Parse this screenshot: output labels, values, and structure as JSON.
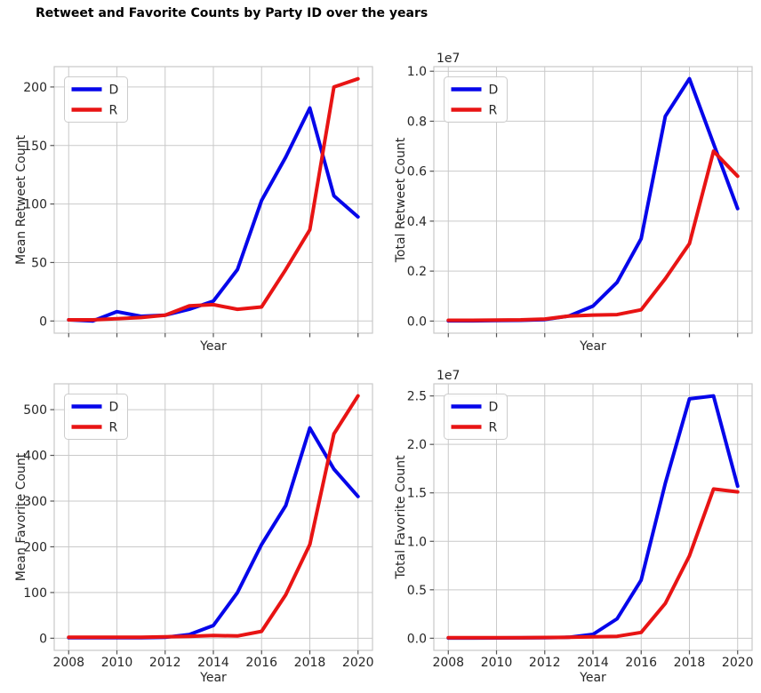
{
  "title": "Retweet and Favorite Counts by Party ID over the years",
  "legend_labels": [
    "D",
    "R"
  ],
  "colors": {
    "democrat_line": "#0606ea",
    "republican_line": "#e81414",
    "grid": "#c9c9c9",
    "spine": "#c9c9c9",
    "tick_mark": "#555555",
    "tick_text": "#262626",
    "title_text": "#000000",
    "legend_border": "#cccccc",
    "background": "#ffffff"
  },
  "chart_data": [
    {
      "type": "line",
      "name": "mean-retweet-count",
      "ylabel": "Mean Retweet Count",
      "xlabel": "Year",
      "x": [
        2008,
        2009,
        2010,
        2011,
        2012,
        2013,
        2014,
        2015,
        2016,
        2017,
        2018,
        2019,
        2020
      ],
      "xticks": [
        2008,
        2010,
        2012,
        2014,
        2016,
        2018,
        2020
      ],
      "xtick_labels": [
        "",
        "",
        "",
        "",
        "",
        "",
        ""
      ],
      "yticks": [
        0,
        50,
        100,
        150,
        200
      ],
      "ytick_labels": [
        "0",
        "50",
        "100",
        "150",
        "200"
      ],
      "y_offset_label": "",
      "xlim": [
        2007.4,
        2020.6
      ],
      "ylim": [
        -10.4,
        217.4
      ],
      "grid": true,
      "legend_position": "upper-left",
      "series": [
        {
          "name": "D",
          "color": "#0606ea",
          "values": [
            1,
            0,
            8,
            4,
            5,
            10,
            17,
            44,
            103,
            140,
            182,
            107,
            89
          ]
        },
        {
          "name": "R",
          "color": "#e81414",
          "values": [
            1,
            1,
            2,
            3,
            5,
            13,
            14,
            10,
            12,
            44,
            78,
            200,
            207
          ]
        }
      ]
    },
    {
      "type": "line",
      "name": "total-retweet-count",
      "ylabel": "Total Retweet Count",
      "xlabel": "Year",
      "x": [
        2008,
        2009,
        2010,
        2011,
        2012,
        2013,
        2014,
        2015,
        2016,
        2017,
        2018,
        2019,
        2020
      ],
      "xticks": [
        2008,
        2010,
        2012,
        2014,
        2016,
        2018,
        2020
      ],
      "xtick_labels": [
        "",
        "",
        "",
        "",
        "",
        "",
        ""
      ],
      "yticks": [
        0,
        2000000,
        4000000,
        6000000,
        8000000,
        10000000
      ],
      "ytick_labels": [
        "0.0",
        "0.2",
        "0.4",
        "0.6",
        "0.8",
        "1.0"
      ],
      "y_offset_label": "1e7",
      "xlim": [
        2007.4,
        2020.6
      ],
      "ylim": [
        -485000,
        10185000
      ],
      "grid": true,
      "legend_position": "upper-left",
      "series": [
        {
          "name": "D",
          "color": "#0606ea",
          "values": [
            10000,
            10000,
            20000,
            30000,
            60000,
            200000,
            600000,
            1550000,
            3300000,
            8200000,
            9700000,
            7100000,
            4500000
          ]
        },
        {
          "name": "R",
          "color": "#e81414",
          "values": [
            30000,
            30000,
            40000,
            50000,
            80000,
            200000,
            240000,
            260000,
            450000,
            1700000,
            3100000,
            6800000,
            5800000
          ]
        }
      ]
    },
    {
      "type": "line",
      "name": "mean-favorite-count",
      "ylabel": "Mean Favorite Count",
      "xlabel": "Year",
      "x": [
        2008,
        2009,
        2010,
        2011,
        2012,
        2013,
        2014,
        2015,
        2016,
        2017,
        2018,
        2019,
        2020
      ],
      "xticks": [
        2008,
        2010,
        2012,
        2014,
        2016,
        2018,
        2020
      ],
      "xtick_labels": [
        "2008",
        "2010",
        "2012",
        "2014",
        "2016",
        "2018",
        "2020"
      ],
      "yticks": [
        0,
        100,
        200,
        300,
        400,
        500
      ],
      "ytick_labels": [
        "0",
        "100",
        "200",
        "300",
        "400",
        "500"
      ],
      "y_offset_label": "",
      "xlim": [
        2007.4,
        2020.6
      ],
      "ylim": [
        -26.5,
        556.5
      ],
      "grid": true,
      "legend_position": "upper-left",
      "series": [
        {
          "name": "D",
          "color": "#0606ea",
          "values": [
            1,
            1,
            1,
            1,
            2,
            8,
            28,
            100,
            205,
            290,
            460,
            370,
            310
          ]
        },
        {
          "name": "R",
          "color": "#e81414",
          "values": [
            2,
            2,
            2,
            2,
            3,
            4,
            6,
            5,
            15,
            95,
            205,
            447,
            530
          ]
        }
      ]
    },
    {
      "type": "line",
      "name": "total-favorite-count",
      "ylabel": "Total Favorite Count",
      "xlabel": "Year",
      "x": [
        2008,
        2009,
        2010,
        2011,
        2012,
        2013,
        2014,
        2015,
        2016,
        2017,
        2018,
        2019,
        2020
      ],
      "xticks": [
        2008,
        2010,
        2012,
        2014,
        2016,
        2018,
        2020
      ],
      "xtick_labels": [
        "2008",
        "2010",
        "2012",
        "2014",
        "2016",
        "2018",
        "2020"
      ],
      "yticks": [
        0,
        5000000,
        10000000,
        15000000,
        20000000,
        25000000
      ],
      "ytick_labels": [
        "0.0",
        "0.5",
        "1.0",
        "1.5",
        "2.0",
        "2.5"
      ],
      "y_offset_label": "1e7",
      "xlim": [
        2007.4,
        2020.6
      ],
      "ylim": [
        -1250000,
        26250000
      ],
      "grid": true,
      "legend_position": "upper-left",
      "series": [
        {
          "name": "D",
          "color": "#0606ea",
          "values": [
            20000,
            20000,
            30000,
            40000,
            50000,
            100000,
            400000,
            2000000,
            6000000,
            16000000,
            24700000,
            25000000,
            15700000
          ]
        },
        {
          "name": "R",
          "color": "#e81414",
          "values": [
            50000,
            50000,
            50000,
            60000,
            80000,
            100000,
            150000,
            200000,
            600000,
            3600000,
            8500000,
            15400000,
            15100000
          ]
        }
      ]
    }
  ]
}
